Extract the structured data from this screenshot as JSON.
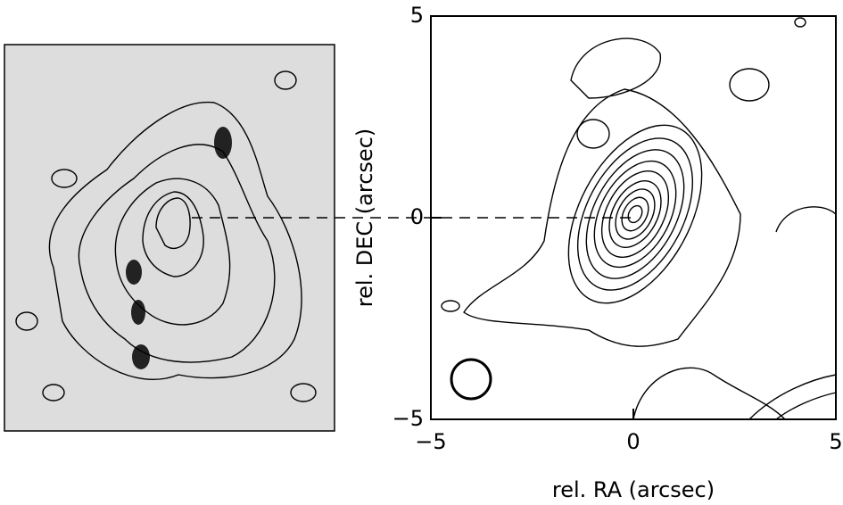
{
  "chart_data": {
    "type": "contour",
    "xlabel": "rel. RA (arcsec)",
    "ylabel": "rel. DEC (arcsec)",
    "xlim": [
      -5,
      5
    ],
    "ylim": [
      -5,
      5
    ],
    "xticks": [
      {
        "value": -5,
        "label": "−5"
      },
      0,
      5
    ],
    "yticks": [
      {
        "value": -5,
        "label": "−5"
      },
      0,
      5
    ]
  }
}
